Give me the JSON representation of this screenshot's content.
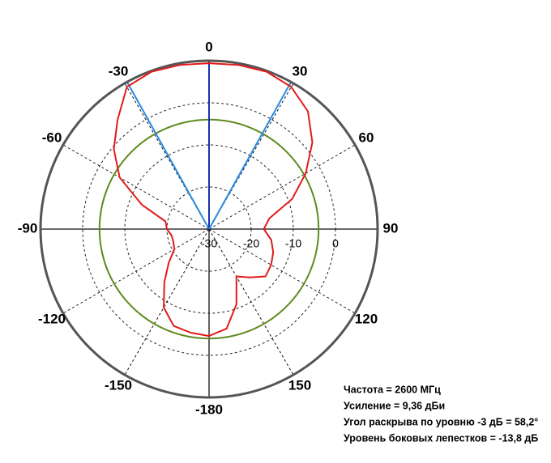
{
  "chart_data": {
    "type": "polar",
    "rlim": [
      -30,
      10
    ],
    "rticks": [
      -30,
      -20,
      -10,
      0
    ],
    "thetaticks": [
      0,
      30,
      60,
      90,
      120,
      150,
      -180,
      -150,
      -120,
      -90,
      -60,
      -30
    ],
    "theta": [
      -180,
      -170,
      -160,
      -150,
      -140,
      -130,
      -120,
      -110,
      -100,
      -90,
      -80,
      -70,
      -60,
      -50,
      -40,
      -30,
      -20,
      -10,
      0,
      10,
      20,
      30,
      40,
      50,
      60,
      70,
      80,
      90,
      100,
      110,
      120,
      130,
      140,
      150,
      160,
      170
    ],
    "series": [
      {
        "color": "#e21b1b",
        "values": [
          -4.6,
          -5,
          -5.5,
          -8.5,
          -13.5,
          -17.5,
          -20.5,
          -21,
          -21,
          -20,
          -19.5,
          -13,
          -5.5,
          -0.5,
          3.8,
          9,
          9.8,
          9.6,
          9.4,
          9.6,
          9.8,
          9,
          6.5,
          2,
          -3.5,
          -9,
          -15.5,
          -17,
          -15,
          -13.8,
          -13,
          -12.5,
          -15,
          -17,
          -11,
          -6
        ]
      }
    ],
    "ref_circle": {
      "value": -4,
      "color": "#5f8a1e"
    },
    "beam_lines": [
      {
        "angle": -29.1,
        "color": "#2a8ae0"
      },
      {
        "angle": 0,
        "color": "#1a2fb0"
      },
      {
        "angle": 29.1,
        "color": "#2a8ae0"
      }
    ],
    "annotations": [
      "Частота = 2600 МГц",
      "Усиление = 9,36 дБи",
      "Угол раскрыва по уровню -3 дБ = 58,2°",
      "Уровень боковых лепестков = -13,8 дБ"
    ]
  }
}
